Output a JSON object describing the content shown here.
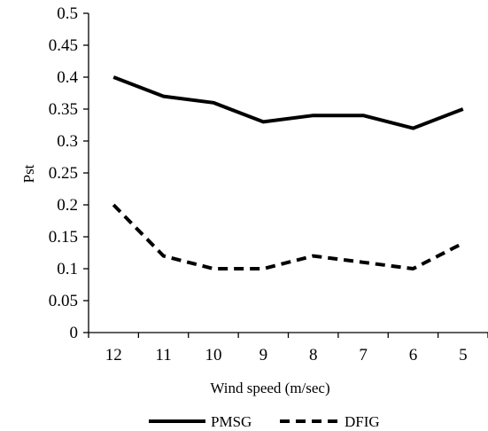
{
  "chart_data": {
    "type": "line",
    "title": "",
    "xlabel": "Wind speed (m/sec)",
    "ylabel": "Pst",
    "categories": [
      "12",
      "11",
      "10",
      "9",
      "8",
      "7",
      "6",
      "5"
    ],
    "ylim": [
      0,
      0.5
    ],
    "yticks": [
      "0",
      "0.05",
      "0.1",
      "0.15",
      "0.2",
      "0.25",
      "0.3",
      "0.35",
      "0.4",
      "0.45",
      "0.5"
    ],
    "grid": false,
    "legend_position": "bottom",
    "series": [
      {
        "name": "PMSG",
        "style": "solid",
        "color": "#000000",
        "values": [
          0.4,
          0.37,
          0.36,
          0.33,
          0.34,
          0.34,
          0.32,
          0.35
        ]
      },
      {
        "name": "DFIG",
        "style": "dashed",
        "color": "#000000",
        "values": [
          0.2,
          0.12,
          0.1,
          0.1,
          0.12,
          0.11,
          0.1,
          0.14
        ]
      }
    ]
  }
}
